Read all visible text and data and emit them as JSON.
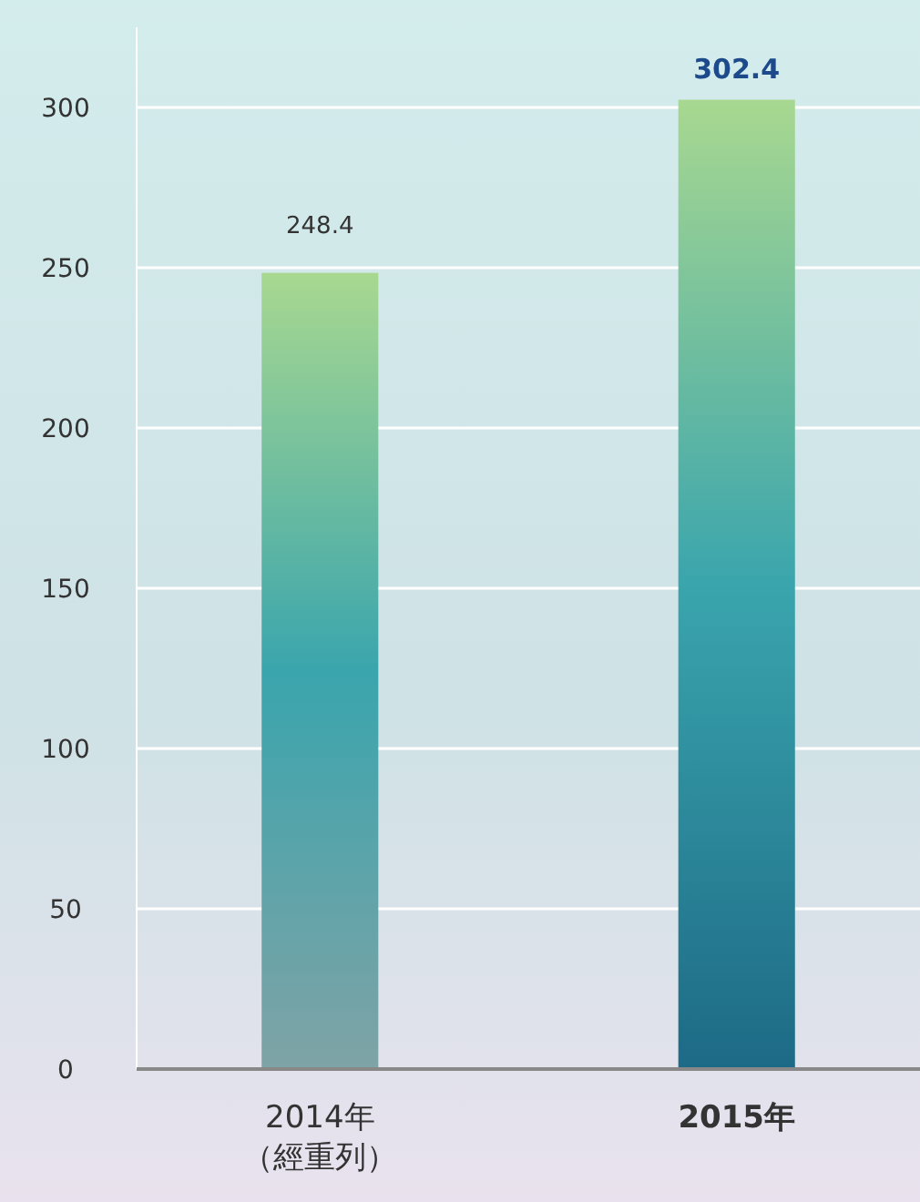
{
  "chart_data": {
    "type": "bar",
    "categories": [
      "2014年（經重列）",
      "2015年"
    ],
    "values": [
      248.4,
      302.4
    ],
    "colors": [
      "#7fa3a6",
      "#1d6a86"
    ],
    "ylim": [
      0,
      325
    ],
    "yticks": [
      0,
      50,
      100,
      150,
      200,
      250,
      300
    ],
    "grid": "y",
    "data_labels": true
  }
}
